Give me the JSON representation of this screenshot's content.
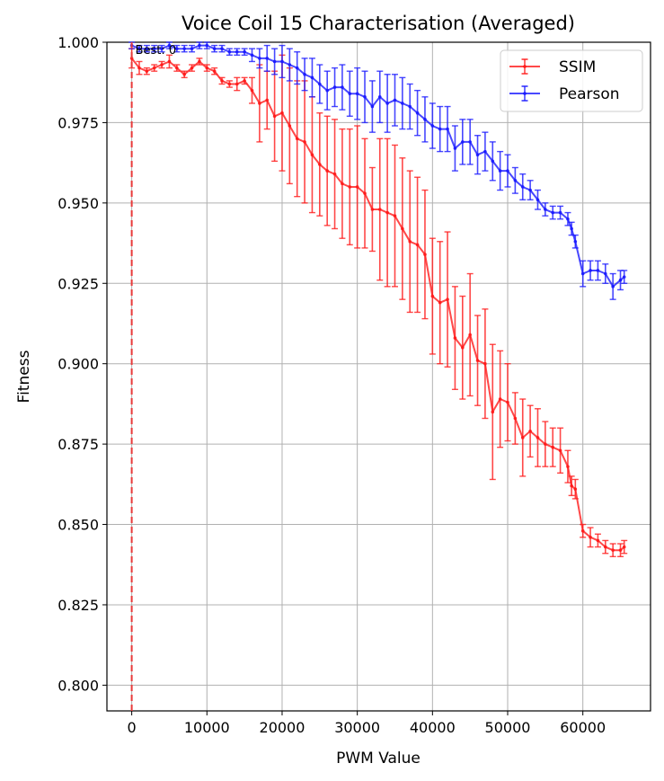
{
  "chart_data": {
    "type": "line",
    "title": "Voice Coil 15 Characterisation (Averaged)",
    "xlabel": "PWM Value",
    "ylabel": "Fitness",
    "xlim": [
      -3300,
      69000
    ],
    "ylim": [
      0.792,
      1.0
    ],
    "xticks": [
      0,
      10000,
      20000,
      30000,
      40000,
      50000,
      60000
    ],
    "xtick_labels": [
      "0",
      "10000",
      "20000",
      "30000",
      "40000",
      "50000",
      "60000"
    ],
    "yticks": [
      0.8,
      0.825,
      0.85,
      0.875,
      0.9,
      0.925,
      0.95,
      0.975,
      1.0
    ],
    "ytick_labels": [
      "0.800",
      "0.825",
      "0.850",
      "0.875",
      "0.900",
      "0.925",
      "0.950",
      "0.975",
      "1.000"
    ],
    "grid": true,
    "legend_position": "top-right",
    "annotation": {
      "text": "Best: 0",
      "x": 0,
      "color": "#e83a3a"
    },
    "series": [
      {
        "name": "SSIM",
        "color": "#ff1a1a",
        "x": [
          0,
          1000,
          2000,
          3000,
          4000,
          5000,
          6000,
          7000,
          8000,
          9000,
          10000,
          11000,
          12000,
          13000,
          14000,
          15000,
          16000,
          17000,
          18000,
          19000,
          20000,
          21000,
          22000,
          23000,
          24000,
          25000,
          26000,
          27000,
          28000,
          29000,
          30000,
          31000,
          32000,
          33000,
          34000,
          35000,
          36000,
          37000,
          38000,
          39000,
          40000,
          41000,
          42000,
          43000,
          44000,
          45000,
          46000,
          47000,
          48000,
          49000,
          50000,
          51000,
          52000,
          53000,
          54000,
          55000,
          56000,
          57000,
          58000,
          58500,
          59000,
          60000,
          61000,
          62000,
          63000,
          64000,
          65000,
          65500
        ],
        "y": [
          0.995,
          0.992,
          0.991,
          0.992,
          0.993,
          0.994,
          0.992,
          0.99,
          0.992,
          0.994,
          0.992,
          0.991,
          0.988,
          0.987,
          0.987,
          0.988,
          0.985,
          0.981,
          0.982,
          0.977,
          0.978,
          0.974,
          0.97,
          0.969,
          0.965,
          0.962,
          0.96,
          0.959,
          0.956,
          0.955,
          0.955,
          0.953,
          0.948,
          0.948,
          0.947,
          0.946,
          0.942,
          0.938,
          0.937,
          0.934,
          0.921,
          0.919,
          0.92,
          0.908,
          0.905,
          0.909,
          0.901,
          0.9,
          0.885,
          0.889,
          0.888,
          0.883,
          0.877,
          0.879,
          0.877,
          0.875,
          0.874,
          0.873,
          0.868,
          0.862,
          0.861,
          0.848,
          0.846,
          0.845,
          0.843,
          0.842,
          0.842,
          0.843
        ],
        "err": [
          0.003,
          0.002,
          0.001,
          0.001,
          0.001,
          0.002,
          0.001,
          0.001,
          0.001,
          0.001,
          0.001,
          0.001,
          0.001,
          0.001,
          0.002,
          0.001,
          0.004,
          0.012,
          0.009,
          0.014,
          0.018,
          0.018,
          0.018,
          0.019,
          0.018,
          0.016,
          0.017,
          0.017,
          0.017,
          0.018,
          0.019,
          0.017,
          0.013,
          0.022,
          0.023,
          0.022,
          0.022,
          0.022,
          0.021,
          0.02,
          0.018,
          0.019,
          0.021,
          0.016,
          0.016,
          0.019,
          0.014,
          0.017,
          0.021,
          0.015,
          0.012,
          0.008,
          0.012,
          0.008,
          0.009,
          0.007,
          0.006,
          0.007,
          0.005,
          0.003,
          0.003,
          0.002,
          0.003,
          0.002,
          0.002,
          0.002,
          0.002,
          0.002
        ]
      },
      {
        "name": "Pearson",
        "color": "#1a1aff",
        "x": [
          0,
          1000,
          2000,
          3000,
          4000,
          5000,
          6000,
          7000,
          8000,
          9000,
          10000,
          11000,
          12000,
          13000,
          14000,
          15000,
          16000,
          17000,
          18000,
          19000,
          20000,
          21000,
          22000,
          23000,
          24000,
          25000,
          26000,
          27000,
          28000,
          29000,
          30000,
          31000,
          32000,
          33000,
          34000,
          35000,
          36000,
          37000,
          38000,
          39000,
          40000,
          41000,
          42000,
          43000,
          44000,
          45000,
          46000,
          47000,
          48000,
          49000,
          50000,
          51000,
          52000,
          53000,
          54000,
          55000,
          56000,
          57000,
          58000,
          58500,
          59000,
          60000,
          61000,
          62000,
          63000,
          64000,
          65000,
          65500
        ],
        "y": [
          0.999,
          0.998,
          0.998,
          0.998,
          0.998,
          0.999,
          0.998,
          0.998,
          0.998,
          0.999,
          0.999,
          0.998,
          0.998,
          0.997,
          0.997,
          0.997,
          0.996,
          0.995,
          0.995,
          0.994,
          0.994,
          0.993,
          0.992,
          0.99,
          0.989,
          0.987,
          0.985,
          0.986,
          0.986,
          0.984,
          0.984,
          0.983,
          0.98,
          0.983,
          0.981,
          0.982,
          0.981,
          0.98,
          0.978,
          0.976,
          0.974,
          0.973,
          0.973,
          0.967,
          0.969,
          0.969,
          0.965,
          0.966,
          0.963,
          0.96,
          0.96,
          0.957,
          0.955,
          0.954,
          0.951,
          0.948,
          0.947,
          0.947,
          0.945,
          0.942,
          0.938,
          0.928,
          0.929,
          0.929,
          0.928,
          0.924,
          0.926,
          0.927
        ],
        "err": [
          0.001,
          0.001,
          0.001,
          0.001,
          0.001,
          0.001,
          0.001,
          0.001,
          0.001,
          0.001,
          0.001,
          0.001,
          0.001,
          0.001,
          0.001,
          0.001,
          0.002,
          0.003,
          0.004,
          0.004,
          0.005,
          0.005,
          0.005,
          0.005,
          0.006,
          0.006,
          0.006,
          0.006,
          0.007,
          0.007,
          0.008,
          0.008,
          0.008,
          0.008,
          0.009,
          0.008,
          0.008,
          0.007,
          0.007,
          0.007,
          0.007,
          0.007,
          0.007,
          0.007,
          0.007,
          0.007,
          0.006,
          0.006,
          0.006,
          0.006,
          0.005,
          0.004,
          0.004,
          0.003,
          0.003,
          0.002,
          0.002,
          0.002,
          0.002,
          0.002,
          0.002,
          0.004,
          0.003,
          0.003,
          0.003,
          0.004,
          0.003,
          0.002
        ]
      }
    ]
  }
}
